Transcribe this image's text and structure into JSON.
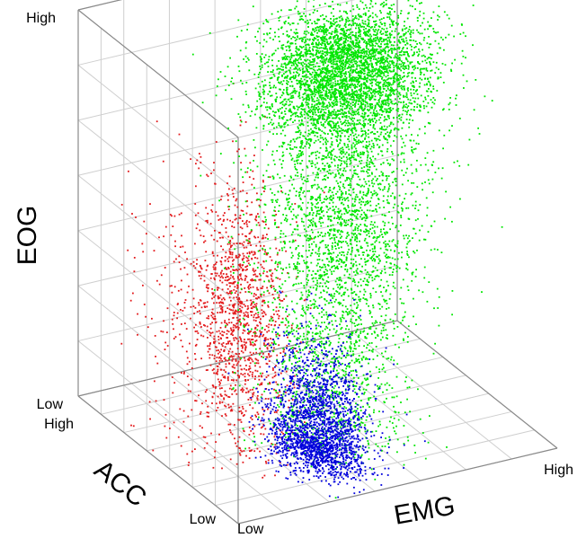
{
  "chart_data": {
    "type": "scatter",
    "title": "",
    "projection": "3d",
    "grid": true,
    "axes": {
      "x": {
        "label": "EMG",
        "tick_low": "Low",
        "tick_high": "High",
        "range": [
          0,
          1
        ]
      },
      "y": {
        "label": "ACC",
        "tick_low": "Low",
        "tick_high": "High",
        "range": [
          0,
          1
        ]
      },
      "z": {
        "label": "EOG",
        "tick_low": "Low",
        "tick_high": "High",
        "range": [
          0,
          1
        ]
      }
    },
    "series": [
      {
        "color": "#e31a1c",
        "approx_point_count": 1500,
        "clusters": [
          {
            "weight": 0.88,
            "center": {
              "x": 0.22,
              "y": 0.42,
              "z": 0.36
            },
            "spread": {
              "x": 0.06,
              "y": 0.1,
              "z": 0.17
            }
          },
          {
            "weight": 0.12,
            "center": {
              "x": 0.1,
              "y": 0.55,
              "z": 0.3
            },
            "spread": {
              "x": 0.06,
              "y": 0.14,
              "z": 0.22
            }
          }
        ]
      },
      {
        "color": "#00e600",
        "approx_point_count": 7000,
        "clusters": [
          {
            "weight": 0.55,
            "center": {
              "x": 0.62,
              "y": 0.56,
              "z": 0.86
            },
            "spread": {
              "x": 0.12,
              "y": 0.1,
              "z": 0.08
            }
          },
          {
            "weight": 0.3,
            "center": {
              "x": 0.58,
              "y": 0.52,
              "z": 0.52
            },
            "spread": {
              "x": 0.12,
              "y": 0.12,
              "z": 0.16
            }
          },
          {
            "weight": 0.15,
            "center": {
              "x": 0.48,
              "y": 0.36,
              "z": 0.18
            },
            "spread": {
              "x": 0.1,
              "y": 0.12,
              "z": 0.14
            }
          }
        ]
      },
      {
        "color": "#0000dd",
        "approx_point_count": 2200,
        "clusters": [
          {
            "weight": 1.0,
            "center": {
              "x": 0.4,
              "y": 0.3,
              "z": 0.05
            },
            "spread": {
              "x": 0.06,
              "y": 0.1,
              "z": 0.11
            }
          }
        ]
      }
    ]
  }
}
